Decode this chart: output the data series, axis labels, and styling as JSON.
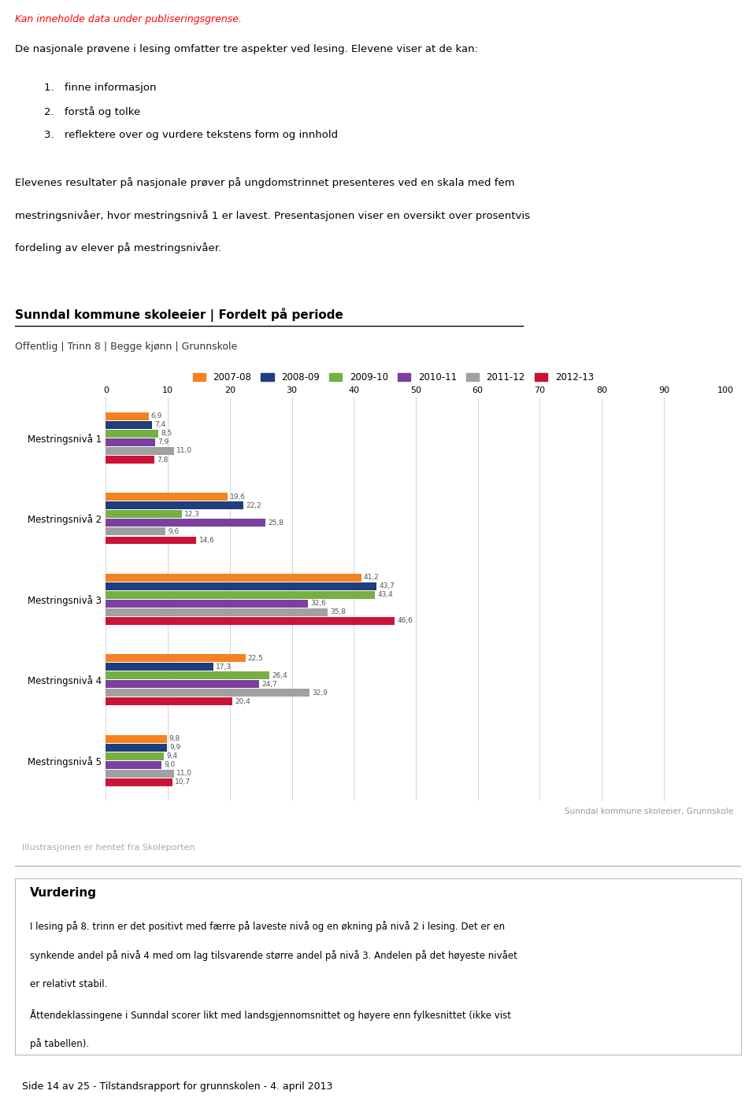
{
  "title": "Sunndal kommune skoleeier | Fordelt på periode",
  "subtitle": "Offentlig | Trinn 8 | Begge kjønn | Grunnskole",
  "warning_text": "Kan inneholde data under publiseringsgrense.",
  "intro_text1": "De nasjonale prøvene i lesing omfatter tre aspekter ved lesing. Elevene viser at de kan:",
  "intro_items": [
    "finne informasjon",
    "forstå og tolke",
    "reflektere over og vurdere tekstens form og innhold"
  ],
  "intro_text2_lines": [
    "Elevenes resultater på nasjonale prøver på ungdomstrinnet presenteres ved en skala med fem",
    "mestringsnivåer, hvor mestringsnivå 1 er lavest. Presentasjonen viser en oversikt over prosentvis",
    "fordeling av elever på mestringsnivåer."
  ],
  "series": [
    "2007-08",
    "2008-09",
    "2009-10",
    "2010-11",
    "2011-12",
    "2012-13"
  ],
  "colors": [
    "#F58220",
    "#1F3E7C",
    "#76B043",
    "#7B3FA0",
    "#A0A0A0",
    "#CC1236"
  ],
  "categories": [
    "Mestringsnivå 1",
    "Mestringsnivå 2",
    "Mestringsnivå 3",
    "Mestringsnivå 4",
    "Mestringsnivå 5"
  ],
  "values": [
    [
      6.9,
      7.4,
      8.5,
      7.9,
      11.0,
      7.8
    ],
    [
      19.6,
      22.2,
      12.3,
      25.8,
      9.6,
      14.6
    ],
    [
      41.2,
      43.7,
      43.4,
      32.6,
      35.8,
      46.6
    ],
    [
      22.5,
      17.3,
      26.4,
      24.7,
      32.9,
      20.4
    ],
    [
      9.8,
      9.9,
      9.4,
      9.0,
      11.0,
      10.7
    ]
  ],
  "xlim": [
    0,
    100
  ],
  "xticks": [
    0,
    10,
    20,
    30,
    40,
    50,
    60,
    70,
    80,
    90,
    100
  ],
  "source_text": "Sunndal kommune skoleeier, Grunnskole",
  "footer_text": "Illustrasjonen er hentet fra Skoleporten",
  "vurdering_title": "Vurdering",
  "vurdering_text1_lines": [
    "I lesing på 8. trinn er det positivt med færre på laveste nivå og en økning på nivå 2 i lesing. Det er en",
    "synkende andel på nivå 4 med om lag tilsvarende større andel på nivå 3. Andelen på det høyeste nivået",
    "er relativt stabil."
  ],
  "vurdering_text2_lines": [
    "Åttendeklassingene i Sunndal scorer likt med landsgjennomsnittet og høyere enn fylkesnittet (ikke vist",
    "på tabellen)."
  ],
  "page_footer": "Side 14 av 25 - Tilstandsrapport for grunnskolen - 4. april 2013",
  "bg_color": "#FFFFFF"
}
